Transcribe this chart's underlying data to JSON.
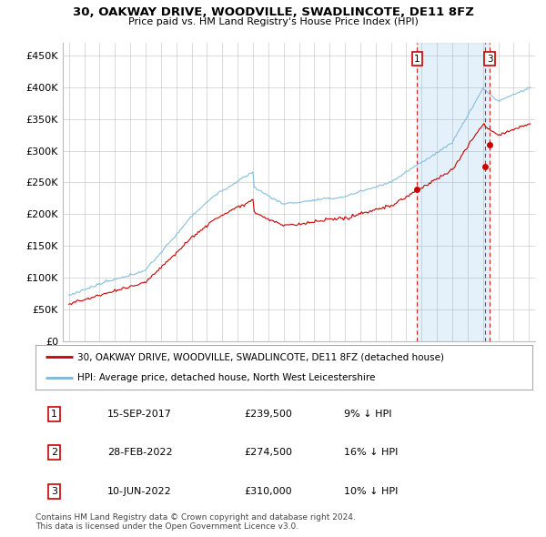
{
  "title": "30, OAKWAY DRIVE, WOODVILLE, SWADLINCOTE, DE11 8FZ",
  "subtitle": "Price paid vs. HM Land Registry's House Price Index (HPI)",
  "ylim": [
    0,
    470000
  ],
  "yticks": [
    0,
    50000,
    100000,
    150000,
    200000,
    250000,
    300000,
    350000,
    400000,
    450000
  ],
  "ytick_labels": [
    "£0",
    "£50K",
    "£100K",
    "£150K",
    "£200K",
    "£250K",
    "£300K",
    "£350K",
    "£400K",
    "£450K"
  ],
  "hpi_color": "#7ab8d9",
  "price_color": "#cc0000",
  "dashed_color": "#cc0000",
  "shade_color": "#d6eaf8",
  "legend_house_label": "30, OAKWAY DRIVE, WOODVILLE, SWADLINCOTE, DE11 8FZ (detached house)",
  "legend_hpi_label": "HPI: Average price, detached house, North West Leicestershire",
  "transactions": [
    {
      "num": 1,
      "date": "15-SEP-2017",
      "price": "£239,500",
      "hpi_diff": "9% ↓ HPI",
      "year": 2017.71,
      "price_val": 239500,
      "show_box": true
    },
    {
      "num": 2,
      "date": "28-FEB-2022",
      "price": "£274,500",
      "hpi_diff": "16% ↓ HPI",
      "year": 2022.16,
      "price_val": 274500,
      "show_box": false
    },
    {
      "num": 3,
      "date": "10-JUN-2022",
      "price": "£310,000",
      "hpi_diff": "10% ↓ HPI",
      "year": 2022.44,
      "price_val": 310000,
      "show_box": true
    }
  ],
  "footer": "Contains HM Land Registry data © Crown copyright and database right 2024.\nThis data is licensed under the Open Government Licence v3.0.",
  "background_color": "#ffffff",
  "plot_bg_color": "#ffffff",
  "grid_color": "#cccccc",
  "xtick_start": 1995,
  "xtick_end": 2025
}
